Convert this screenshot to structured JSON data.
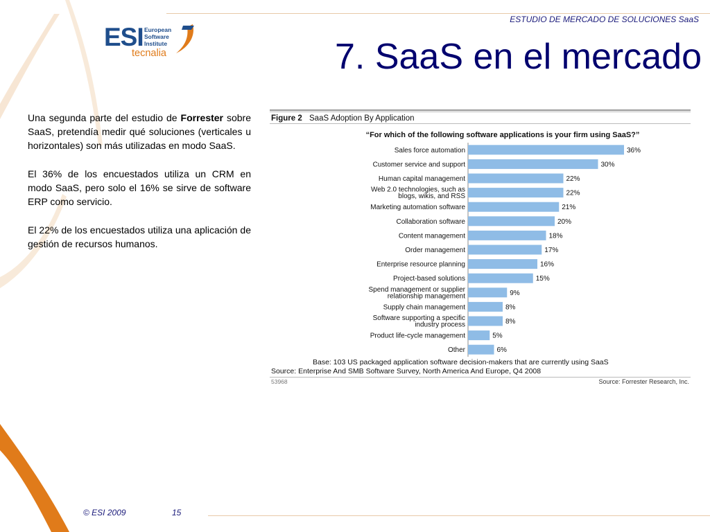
{
  "header": {
    "deck_title": "ESTUDIO DE MERCADO DE SOLUCIONES SaaS"
  },
  "logo": {
    "main": "ESI",
    "line1": "European",
    "line2": "Software",
    "line3": "Institute",
    "brand": "tecnalia"
  },
  "slide": {
    "title": "7. SaaS en el mercado",
    "paragraph1_pre": "Una segunda parte del estudio de ",
    "paragraph1_bold": "Forrester",
    "paragraph1_post": " sobre SaaS, pretendía medir qué soluciones (verticales u horizontales) son más utilizadas en modo SaaS.",
    "paragraph2": "El 36% de los encuestados utiliza un CRM en modo SaaS, pero solo el 16% se sirve de software ERP como servicio.",
    "paragraph3": "El 22% de los encuestados utiliza una aplicación de gestión de recursos humanos."
  },
  "figure": {
    "label": "Figure 2",
    "caption": "SaaS Adoption By Application",
    "question": "“For which of the following software applications is your firm using SaaS?”",
    "base": "Base: 103 US packaged application software decision-makers that are currently using SaaS",
    "source": "Source: Enterprise And SMB Software Survey, North America And Europe, Q4 2008",
    "id": "53968",
    "credit": "Source: Forrester Research, Inc."
  },
  "chart_data": {
    "type": "bar",
    "orientation": "horizontal",
    "categories": [
      [
        "Sales force automation"
      ],
      [
        "Customer service and support"
      ],
      [
        "Human capital management"
      ],
      [
        "Web 2.0 technologies, such as",
        "blogs, wikis, and RSS"
      ],
      [
        "Marketing automation software"
      ],
      [
        "Collaboration software"
      ],
      [
        "Content management"
      ],
      [
        "Order management"
      ],
      [
        "Enterprise resource planning"
      ],
      [
        "Project-based solutions"
      ],
      [
        "Spend management or supplier",
        "relationship management"
      ],
      [
        "Supply chain management"
      ],
      [
        "Software supporting a specific",
        "industry process"
      ],
      [
        "Product life-cycle management"
      ],
      [
        "Other"
      ]
    ],
    "values": [
      36,
      30,
      22,
      22,
      21,
      20,
      18,
      17,
      16,
      15,
      9,
      8,
      8,
      5,
      6
    ],
    "value_labels": [
      "36%",
      "30%",
      "22%",
      "22%",
      "21%",
      "20%",
      "18%",
      "17%",
      "16%",
      "15%",
      "9%",
      "8%",
      "8%",
      "5%",
      "6%"
    ],
    "bar_color": "#8fbce6",
    "xlim": [
      0,
      40
    ]
  },
  "footer": {
    "copyright": "© ESI 2009",
    "page": "15"
  }
}
